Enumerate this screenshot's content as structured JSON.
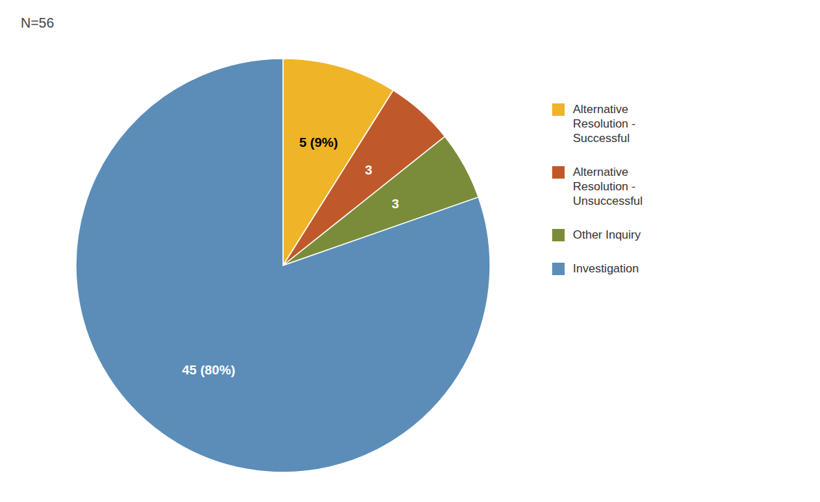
{
  "chart_data": {
    "type": "pie",
    "title": "N=56",
    "categories": [
      "Alternative\nResolution -\nSuccessful",
      "Alternative\nResolution -\nUnsuccessful",
      "Other Inquiry",
      "Investigation"
    ],
    "values": [
      5,
      3,
      3,
      45
    ],
    "value_labels": [
      "5 (9%)",
      "3",
      "3",
      "45 (80%)"
    ],
    "colors": [
      "#F0B429",
      "#C0592A",
      "#7A8C3A",
      "#5B8DB8"
    ],
    "data_labels": true,
    "legend": "right"
  }
}
